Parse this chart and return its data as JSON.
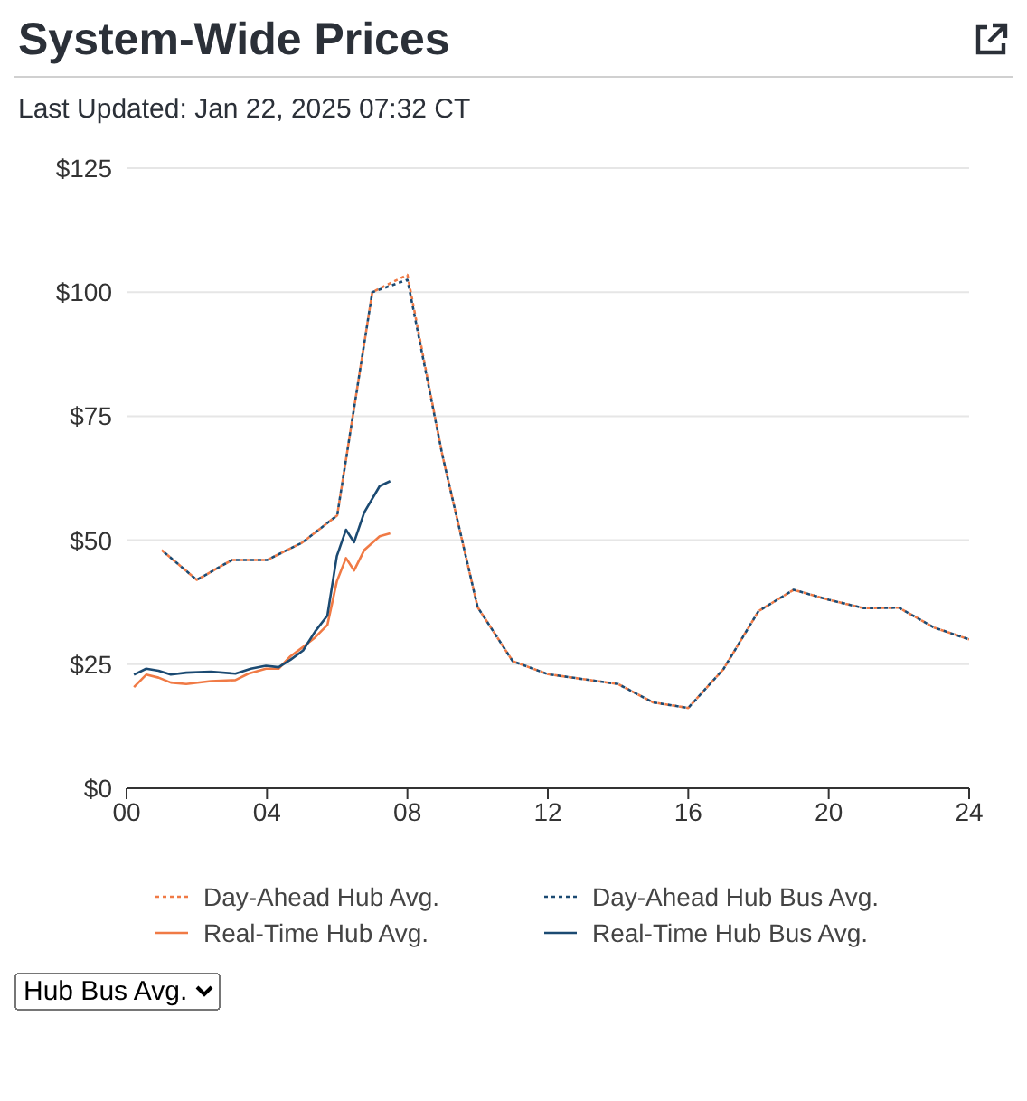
{
  "chart_data": {
    "type": "line",
    "title": "System-Wide Prices",
    "subtitle": "Last Updated: Jan 22, 2025 07:32 CT",
    "annotations": [
      "Hub Bus Avg."
    ],
    "xlim": [
      0,
      24
    ],
    "xticks": [
      {
        "value": 0,
        "label": "00"
      },
      {
        "value": 4,
        "label": "04"
      },
      {
        "value": 8,
        "label": "08"
      },
      {
        "value": 12,
        "label": "12"
      },
      {
        "value": 16,
        "label": "16"
      },
      {
        "value": 20,
        "label": "20"
      },
      {
        "value": 24,
        "label": "24"
      }
    ],
    "ylim": [
      0,
      125
    ],
    "yticks": [
      {
        "value": 0,
        "label": "$0"
      },
      {
        "value": 25,
        "label": "$25"
      },
      {
        "value": 50,
        "label": "$50"
      },
      {
        "value": 75,
        "label": "$75"
      },
      {
        "value": 100,
        "label": "$100"
      },
      {
        "value": 125,
        "label": "$125"
      }
    ],
    "grid": "y",
    "legend": "bottom",
    "marker": "none",
    "series": [
      {
        "name": "Day-Ahead Hub Avg.",
        "color": "#f07a45",
        "line_style": "dotted",
        "x": [
          1,
          2,
          3,
          4,
          5,
          6,
          7,
          8,
          9,
          10,
          11,
          12,
          13,
          14,
          15,
          16,
          17,
          18,
          19,
          20,
          21,
          22,
          23,
          24
        ],
        "values": [
          48,
          42,
          46,
          46,
          49.5,
          55,
          100,
          103.5,
          67,
          36.5,
          25.6,
          23,
          22,
          21,
          17.3,
          16.2,
          24,
          35.7,
          40,
          38,
          36.3,
          36.4,
          32.4,
          30
        ]
      },
      {
        "name": "Day-Ahead Hub Bus Avg.",
        "color": "#1b4a72",
        "line_style": "dotted",
        "x": [
          1,
          2,
          3,
          4,
          5,
          6,
          7,
          8,
          9,
          10,
          11,
          12,
          13,
          14,
          15,
          16,
          17,
          18,
          19,
          20,
          21,
          22,
          23,
          24
        ],
        "values": [
          48,
          42,
          46,
          46,
          49.5,
          55,
          100,
          102.5,
          67,
          36.5,
          25.6,
          23,
          22,
          21,
          17.3,
          16.2,
          24,
          35.7,
          40,
          38,
          36.3,
          36.4,
          32.4,
          30
        ]
      },
      {
        "name": "Real-Time Hub Avg.",
        "color": "#f07a45",
        "line_style": "solid",
        "x": [
          0.21,
          0.56,
          0.91,
          1.26,
          1.7,
          2.4,
          3.1,
          3.47,
          3.97,
          4.33,
          4.67,
          5.03,
          5.37,
          5.72,
          5.99,
          6.25,
          6.48,
          6.77,
          7.21,
          7.51
        ],
        "values": [
          20.4,
          22.9,
          22.3,
          21.3,
          21,
          21.6,
          21.8,
          23.1,
          24.1,
          24.1,
          26.6,
          28.5,
          30.4,
          32.9,
          41.7,
          46.4,
          43.9,
          48,
          50.8,
          51.4
        ]
      },
      {
        "name": "Real-Time Hub Bus Avg.",
        "color": "#1b4a72",
        "line_style": "solid",
        "x": [
          0.21,
          0.56,
          0.91,
          1.26,
          1.7,
          2.4,
          3.1,
          3.54,
          3.97,
          4.33,
          4.67,
          5.03,
          5.37,
          5.72,
          5.99,
          6.25,
          6.48,
          6.77,
          7.21,
          7.51
        ],
        "values": [
          22.9,
          24.1,
          23.7,
          22.9,
          23.3,
          23.5,
          23.1,
          24.1,
          24.7,
          24.4,
          25.9,
          27.8,
          31.6,
          34.8,
          46.8,
          52.1,
          49.6,
          55.6,
          60.9,
          61.9
        ]
      }
    ]
  }
}
